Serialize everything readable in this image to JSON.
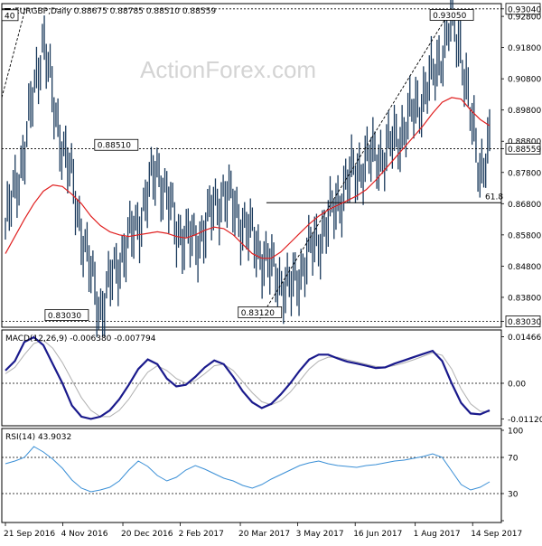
{
  "header": {
    "symbol_line": "EURGBP,Daily  0.88675 0.88785 0.88510 0.88559"
  },
  "watermark": "ActionForex.com",
  "colors": {
    "price_bars": "#1a3a5c",
    "ma": "#e02020",
    "macd": "#1a1a8c",
    "macd_signal": "#b0b0b0",
    "rsi": "#3a8fd6",
    "trend": "#000000"
  },
  "chart_data": [
    {
      "type": "ohlc",
      "name": "price",
      "y_axis_ticks": [
        "0.93040",
        "0.92800",
        "0.91800",
        "0.90800",
        "0.89800",
        "0.88800",
        "0.88559",
        "0.87800",
        "0.86800",
        "0.85800",
        "0.84800",
        "0.83800",
        "0.83030"
      ],
      "ylim": [
        0.829,
        0.9315
      ],
      "x_tick_labels": [
        "21 Sep 2016",
        "4 Nov 2016",
        "20 Dec 2016",
        "2 Feb 2017",
        "20 Mar 2017",
        "3 May 2017",
        "16 Jun 2017",
        "1 Aug 2017",
        "14 Sep 2017"
      ],
      "last_price": "0.88559",
      "annotations": [
        {
          "label": "0.93050",
          "x": "29 Aug 2017",
          "y": 0.9305
        },
        {
          "label": "0.88510",
          "x": "15 Dec 2016",
          "y": 0.8851
        },
        {
          "label": "0.83030",
          "x": "7 Nov 2016",
          "y": 0.8303
        },
        {
          "label": "0.83120",
          "x": "4 Apr 2017",
          "y": 0.8312
        },
        {
          "label": "40",
          "x": "21 Sep 2016",
          "y": 0.9304
        }
      ],
      "horizontal_lines": [
        0.9304,
        0.88559,
        0.8303
      ],
      "fib_line": {
        "label": "61.8",
        "y": 0.8683
      },
      "trend_line": {
        "from": {
          "x": "4 Apr 2017",
          "y": 0.8312
        },
        "to": {
          "x": "29 Aug 2017",
          "y": 0.9305
        }
      },
      "ma_series": [
        0.852,
        0.8575,
        0.863,
        0.868,
        0.872,
        0.874,
        0.8735,
        0.871,
        0.868,
        0.864,
        0.861,
        0.859,
        0.858,
        0.8575,
        0.858,
        0.8585,
        0.859,
        0.8585,
        0.8575,
        0.857,
        0.858,
        0.8595,
        0.8605,
        0.86,
        0.858,
        0.855,
        0.852,
        0.8505,
        0.8505,
        0.8525,
        0.8555,
        0.8585,
        0.8615,
        0.864,
        0.866,
        0.8675,
        0.869,
        0.8705,
        0.8725,
        0.8755,
        0.879,
        0.8825,
        0.886,
        0.8895,
        0.893,
        0.897,
        0.9005,
        0.902,
        0.9015,
        0.898,
        0.895,
        0.893
      ]
    },
    {
      "type": "line",
      "name": "MACD",
      "legend": "MACD(12,26,9) -0.006380 -0.007794",
      "y_axis_ticks": [
        "0.014661",
        "0.00",
        "-0.011202"
      ],
      "ylim": [
        -0.0128,
        0.0162
      ],
      "macd_series": [
        0.004,
        0.007,
        0.013,
        0.0145,
        0.012,
        0.006,
        0.0,
        -0.007,
        -0.0105,
        -0.0112,
        -0.0105,
        -0.0085,
        -0.005,
        -0.0005,
        0.0045,
        0.0075,
        0.006,
        0.0015,
        -0.001,
        -0.0005,
        0.002,
        0.005,
        0.0072,
        0.006,
        0.002,
        -0.0025,
        -0.006,
        -0.0078,
        -0.0065,
        -0.0035,
        0.0,
        0.004,
        0.0075,
        0.009,
        0.009,
        0.0078,
        0.0068,
        0.0062,
        0.0055,
        0.0048,
        0.005,
        0.0062,
        0.0072,
        0.0082,
        0.0092,
        0.0102,
        0.007,
        0.0,
        -0.0062,
        -0.0095,
        -0.0098,
        -0.0085
      ],
      "signal_series": [
        0.003,
        0.005,
        0.009,
        0.0125,
        0.0135,
        0.011,
        0.0065,
        0.001,
        -0.0045,
        -0.0085,
        -0.0105,
        -0.0105,
        -0.0085,
        -0.005,
        -0.0005,
        0.0035,
        0.0055,
        0.004,
        0.0015,
        0.0,
        0.0008,
        0.003,
        0.0055,
        0.006,
        0.004,
        0.0005,
        -0.003,
        -0.0058,
        -0.0068,
        -0.0055,
        -0.0028,
        0.0008,
        0.0045,
        0.007,
        0.0082,
        0.0082,
        0.0074,
        0.0067,
        0.006,
        0.0053,
        0.005,
        0.0056,
        0.0064,
        0.0074,
        0.0085,
        0.0096,
        0.0088,
        0.0045,
        -0.0018,
        -0.0065,
        -0.0088,
        -0.009
      ]
    },
    {
      "type": "line",
      "name": "RSI",
      "legend": "RSI(14) 43.9032",
      "y_axis_ticks": [
        "100",
        "70",
        "30",
        "0"
      ],
      "ylim": [
        0,
        100
      ],
      "reference_lines": [
        70,
        30
      ],
      "rsi_series": [
        63,
        66,
        70,
        82,
        76,
        68,
        58,
        45,
        36,
        32,
        34,
        37,
        44,
        56,
        66,
        60,
        50,
        44,
        48,
        56,
        61,
        57,
        52,
        47,
        44,
        39,
        36,
        40,
        46,
        51,
        56,
        61,
        64,
        66,
        63,
        61,
        60,
        59,
        61,
        62,
        64,
        66,
        67,
        69,
        71,
        74,
        70,
        55,
        40,
        34,
        37,
        43
      ]
    }
  ]
}
